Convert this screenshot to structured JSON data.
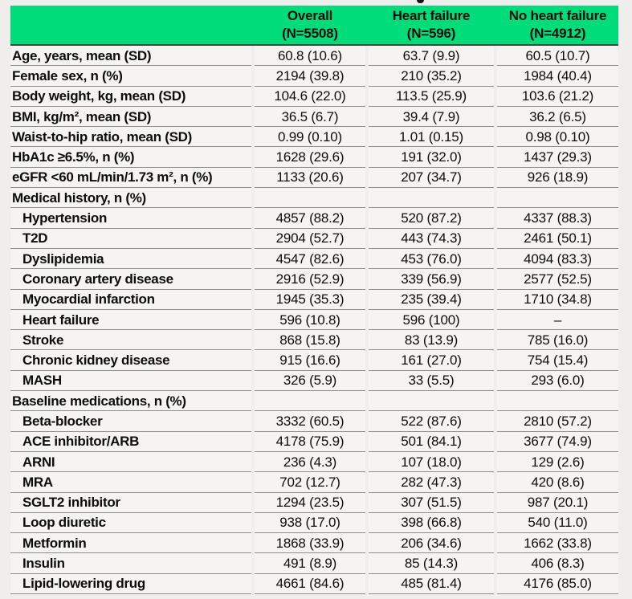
{
  "page": {
    "background_color": "#efeeec",
    "header_green": "#00dc7a",
    "row_background": "#f5f4f1",
    "separator_color": "#8d8d8d"
  },
  "table": {
    "columns": [
      {
        "label": "Overall",
        "n": "(N=5508)"
      },
      {
        "label": "Heart failure",
        "n": "(N=596)"
      },
      {
        "label": "No heart failure",
        "n": "(N=4912)"
      }
    ],
    "rows": [
      {
        "type": "data",
        "indent": false,
        "label": "Age, years, mean (SD)",
        "values": [
          "60.8 (10.6)",
          "63.7 (9.9)",
          "60.5 (10.7)"
        ]
      },
      {
        "type": "data",
        "indent": false,
        "label": "Female sex, n (%)",
        "values": [
          "2194 (39.8)",
          "210 (35.2)",
          "1984 (40.4)"
        ]
      },
      {
        "type": "data",
        "indent": false,
        "label": "Body weight, kg, mean (SD)",
        "values": [
          "104.6 (22.0)",
          "113.5 (25.9)",
          "103.6 (21.2)"
        ]
      },
      {
        "type": "data",
        "indent": false,
        "label": "BMI, kg/m², mean (SD)",
        "values": [
          "36.5 (6.7)",
          "39.4 (7.9)",
          "36.2 (6.5)"
        ]
      },
      {
        "type": "data",
        "indent": false,
        "label": "Waist-to-hip ratio, mean (SD)",
        "values": [
          "0.99 (0.10)",
          "1.01 (0.15)",
          "0.98 (0.10)"
        ]
      },
      {
        "type": "data",
        "indent": false,
        "label": "HbA1c ≥6.5%, n (%)",
        "values": [
          "1628 (29.6)",
          "191 (32.0)",
          "1437 (29.3)"
        ]
      },
      {
        "type": "data",
        "indent": false,
        "label": "eGFR <60 mL/min/1.73 m², n (%)",
        "values": [
          "1133 (20.6)",
          "207 (34.7)",
          "926 (18.9)"
        ]
      },
      {
        "type": "section",
        "label": "Medical history, n (%)"
      },
      {
        "type": "data",
        "indent": true,
        "label": "Hypertension",
        "values": [
          "4857 (88.2)",
          "520 (87.2)",
          "4337 (88.3)"
        ]
      },
      {
        "type": "data",
        "indent": true,
        "label": "T2D",
        "values": [
          "2904 (52.7)",
          "443 (74.3)",
          "2461 (50.1)"
        ]
      },
      {
        "type": "data",
        "indent": true,
        "label": "Dyslipidemia",
        "values": [
          "4547 (82.6)",
          "453 (76.0)",
          "4094 (83.3)"
        ]
      },
      {
        "type": "data",
        "indent": true,
        "label": "Coronary artery disease",
        "values": [
          "2916 (52.9)",
          "339 (56.9)",
          "2577 (52.5)"
        ]
      },
      {
        "type": "data",
        "indent": true,
        "label": "Myocardial infarction",
        "values": [
          "1945 (35.3)",
          "235 (39.4)",
          "1710 (34.8)"
        ]
      },
      {
        "type": "data",
        "indent": true,
        "label": "Heart failure",
        "values": [
          "596 (10.8)",
          "596 (100)",
          "–"
        ]
      },
      {
        "type": "data",
        "indent": true,
        "label": "Stroke",
        "values": [
          "868 (15.8)",
          "83 (13.9)",
          "785 (16.0)"
        ]
      },
      {
        "type": "data",
        "indent": true,
        "label": "Chronic kidney disease",
        "values": [
          "915 (16.6)",
          "161 (27.0)",
          "754 (15.4)"
        ]
      },
      {
        "type": "data",
        "indent": true,
        "label": "MASH",
        "values": [
          "326 (5.9)",
          "33 (5.5)",
          "293 (6.0)"
        ]
      },
      {
        "type": "section",
        "label": "Baseline medications, n (%)"
      },
      {
        "type": "data",
        "indent": true,
        "label": "Beta-blocker",
        "values": [
          "3332 (60.5)",
          "522 (87.6)",
          "2810 (57.2)"
        ]
      },
      {
        "type": "data",
        "indent": true,
        "label": "ACE inhibitor/ARB",
        "values": [
          "4178 (75.9)",
          "501 (84.1)",
          "3677 (74.9)"
        ]
      },
      {
        "type": "data",
        "indent": true,
        "label": "ARNI",
        "values": [
          "236 (4.3)",
          "107 (18.0)",
          "129 (2.6)"
        ]
      },
      {
        "type": "data",
        "indent": true,
        "label": "MRA",
        "values": [
          "702 (12.7)",
          "282 (47.3)",
          "420 (8.6)"
        ]
      },
      {
        "type": "data",
        "indent": true,
        "label": "SGLT2 inhibitor",
        "values": [
          "1294 (23.5)",
          "307 (51.5)",
          "987 (20.1)"
        ]
      },
      {
        "type": "data",
        "indent": true,
        "label": "Loop diuretic",
        "values": [
          "938 (17.0)",
          "398 (66.8)",
          "540 (11.0)"
        ]
      },
      {
        "type": "data",
        "indent": true,
        "label": "Metformin",
        "values": [
          "1868 (33.9)",
          "206 (34.6)",
          "1662 (33.8)"
        ]
      },
      {
        "type": "data",
        "indent": true,
        "label": "Insulin",
        "values": [
          "491 (8.9)",
          "85 (14.3)",
          "406 (8.3)"
        ]
      },
      {
        "type": "data",
        "indent": true,
        "label": "Lipid-lowering drug",
        "values": [
          "4661 (84.6)",
          "485 (81.4)",
          "4176 (85.0)"
        ]
      }
    ]
  }
}
